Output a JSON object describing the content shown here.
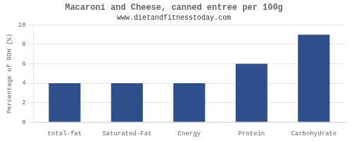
{
  "chart_data": {
    "type": "bar",
    "title": "Macaroni and Cheese, canned entree per 100g",
    "subtitle": "www.dietandfitnesstoday.com",
    "categories": [
      "total-fat",
      "Saturated-Fat",
      "Energy",
      "Protein",
      "Carbohydrate"
    ],
    "values": [
      4.0,
      4.0,
      4.0,
      6.0,
      9.0
    ],
    "color": "#2e4f8c",
    "ylabel": "Percentage of RDH (%)",
    "ylim": [
      0,
      10
    ],
    "yticks": [
      0,
      2,
      4,
      6,
      8,
      10
    ],
    "grid": true
  }
}
